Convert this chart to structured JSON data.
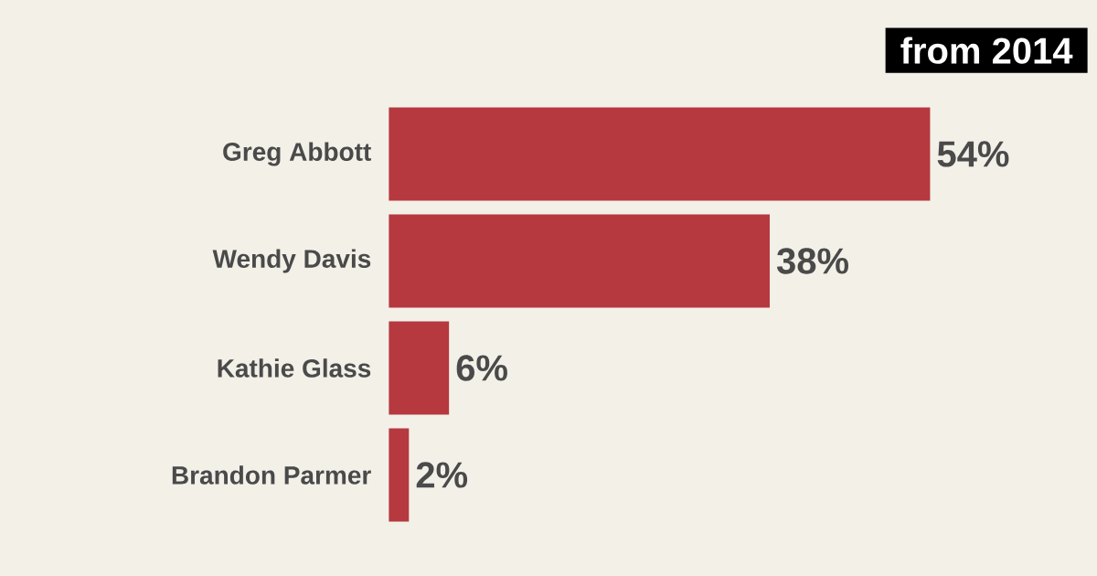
{
  "chart_data": {
    "type": "bar",
    "orientation": "horizontal",
    "categories": [
      "Greg Abbott",
      "Wendy Davis",
      "Kathie Glass",
      "Brandon Parmer"
    ],
    "values": [
      54,
      38,
      6,
      2
    ],
    "value_labels": [
      "54%",
      "38%",
      "6%",
      "2%"
    ],
    "color": "#b5393e",
    "annotations": [
      "from 2014"
    ]
  }
}
